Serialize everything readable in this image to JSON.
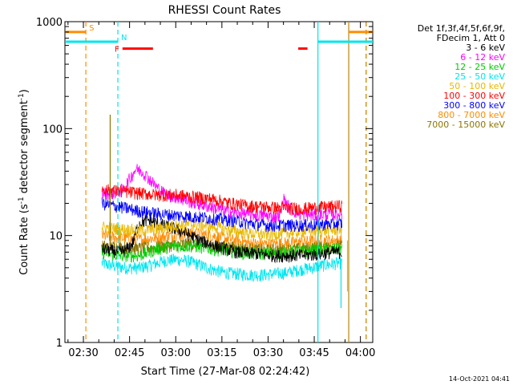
{
  "chart_data": {
    "type": "line",
    "title": "RHESSI Count Rates",
    "xlabel": "Start Time (27-Mar-08 02:24:42)",
    "ylabel_parts": [
      "Count Rate (s",
      "-1",
      " detector segment",
      "-1",
      ")"
    ],
    "footer_date": "14-Oct-2021 04:41",
    "yscale": "log",
    "ylim": [
      1,
      1000
    ],
    "xlim_minutes_from_0224": [
      0,
      100
    ],
    "x_ticks": [
      {
        "label": "02:30",
        "t": 6
      },
      {
        "label": "02:45",
        "t": 21
      },
      {
        "label": "03:00",
        "t": 36
      },
      {
        "label": "03:15",
        "t": 51
      },
      {
        "label": "03:30",
        "t": 66
      },
      {
        "label": "03:45",
        "t": 81
      },
      {
        "label": "04:00",
        "t": 96
      }
    ],
    "y_ticks": [
      {
        "label": "1",
        "v": 1
      },
      {
        "label": "10",
        "v": 10
      },
      {
        "label": "100",
        "v": 100
      },
      {
        "label": "1000",
        "v": 1000
      }
    ],
    "legend_header": [
      "Det 1f,3f,4f,5f,6f,9f,",
      "FDecim 1, Att 0"
    ],
    "legend_position": "right",
    "series": [
      {
        "name": "3 - 6 keV",
        "color": "#000000",
        "x": [
          12,
          18,
          20,
          22,
          24,
          27,
          30,
          34,
          38,
          44,
          50,
          56,
          62,
          68,
          74,
          80,
          84,
          87,
          90
        ],
        "y": [
          7.5,
          7,
          7.4,
          8.5,
          13,
          14,
          13,
          12,
          11,
          9,
          7.8,
          7,
          6.8,
          6.5,
          6.5,
          6.6,
          6.8,
          7,
          7
        ]
      },
      {
        "name": "6 - 12 keV",
        "color": "#ff00ff",
        "x": [
          12,
          16,
          19,
          21,
          23,
          25,
          27,
          30,
          33,
          36,
          40,
          46,
          52,
          58,
          64,
          68,
          70,
          71,
          73,
          76,
          80,
          85,
          90
        ],
        "y": [
          25,
          25,
          27,
          34,
          42,
          40,
          35,
          28,
          24,
          23,
          21,
          19,
          17,
          16,
          15.5,
          15,
          16,
          22,
          18,
          16,
          15.5,
          16,
          16
        ]
      },
      {
        "name": "12 - 25 keV",
        "color": "#00cc00",
        "x": [
          12,
          18,
          24,
          30,
          36,
          42,
          48,
          54,
          60,
          66,
          72,
          78,
          84,
          90
        ],
        "y": [
          7,
          6.5,
          6.5,
          7.5,
          8,
          8,
          7.5,
          7.2,
          6.8,
          6.8,
          7,
          7.2,
          7.5,
          7.5
        ]
      },
      {
        "name": "25 - 50 keV",
        "color": "#00e5ee",
        "x": [
          12,
          16,
          20,
          24,
          28,
          32,
          36,
          40,
          44,
          48,
          52,
          56,
          60,
          64,
          68,
          72,
          76,
          80,
          84,
          88,
          90
        ],
        "y": [
          5.5,
          5.2,
          5,
          5,
          5.3,
          5.8,
          6,
          5.8,
          5.3,
          4.8,
          4.5,
          4.4,
          4.3,
          4.3,
          4.4,
          4.5,
          4.8,
          5,
          5.3,
          5.5,
          5.6
        ]
      },
      {
        "name": "50 - 100 keV",
        "color": "#e8b800",
        "x": [
          12,
          18,
          24,
          30,
          36,
          42,
          48,
          54,
          60,
          66,
          72,
          78,
          84,
          90
        ],
        "y": [
          12,
          11.5,
          11.2,
          11.5,
          12.5,
          12.8,
          12.2,
          11.2,
          10.5,
          10.2,
          10.5,
          11,
          11.2,
          11.5
        ]
      },
      {
        "name": "100 - 300 keV",
        "color": "#ff0000",
        "x": [
          12,
          18,
          24,
          30,
          36,
          42,
          48,
          54,
          60,
          66,
          72,
          78,
          84,
          90
        ],
        "y": [
          27,
          26,
          25,
          24,
          24,
          23,
          22,
          20,
          19,
          18.5,
          18,
          18,
          18.5,
          19
        ]
      },
      {
        "name": "300 - 800 keV",
        "color": "#0000ff",
        "x": [
          12,
          18,
          24,
          30,
          36,
          42,
          48,
          54,
          60,
          66,
          72,
          78,
          84,
          90
        ],
        "y": [
          20,
          18.5,
          17,
          16,
          15.5,
          15,
          14.5,
          14,
          13,
          12.5,
          12.5,
          12.5,
          12.8,
          13
        ]
      },
      {
        "name": "800 - 7000 keV",
        "color": "#ff8c00",
        "x": [
          12,
          18,
          24,
          30,
          36,
          42,
          48,
          54,
          60,
          66,
          72,
          78,
          84,
          90
        ],
        "y": [
          10,
          9.5,
          9.2,
          9.5,
          10.2,
          10.5,
          10,
          9.2,
          8.5,
          8.3,
          8.5,
          8.8,
          9,
          9
        ]
      },
      {
        "name": "7000 - 15000 keV",
        "color": "#8b7500",
        "x": [
          12,
          18,
          24,
          30,
          36,
          42,
          48,
          54,
          60,
          66,
          72,
          78,
          84,
          90
        ],
        "y": [
          8,
          7.8,
          7.6,
          7.8,
          8.2,
          8.5,
          8.2,
          7.8,
          7.5,
          7.3,
          7.4,
          7.6,
          7.8,
          8
        ]
      }
    ],
    "annotations": {
      "vertical_lines": [
        {
          "t": 6.8,
          "color": "#ff8c00",
          "style": "dashed"
        },
        {
          "t": 17.2,
          "color": "#00e5ee",
          "style": "dashed"
        },
        {
          "t": 82.2,
          "color": "#00e5ee",
          "style": "solid"
        },
        {
          "t": 92.2,
          "color": "#b8860b",
          "style": "solid"
        },
        {
          "t": 97.8,
          "color": "#00e5ee",
          "style": "dashed"
        },
        {
          "t": 97.9,
          "color": "#ff8c00",
          "style": "dashed"
        }
      ],
      "flag_bars": [
        {
          "t0": 0.3,
          "t1": 6.8,
          "v": 800,
          "color": "#ff8c00",
          "label": "S"
        },
        {
          "t0": 0.3,
          "t1": 17.2,
          "v": 650,
          "color": "#00e5ee",
          "label": "N"
        },
        {
          "t0": 18.7,
          "t1": 28.6,
          "v": 560,
          "color": "#ff0000",
          "label": "F"
        },
        {
          "t0": 75.8,
          "t1": 78.8,
          "v": 560,
          "color": "#ff0000",
          "label": ""
        },
        {
          "t0": 82.2,
          "t1": 100,
          "v": 650,
          "color": "#00e5ee",
          "label": ""
        },
        {
          "t0": 92.2,
          "t1": 100,
          "v": 800,
          "color": "#ff8c00",
          "label": ""
        }
      ],
      "spikes": [
        {
          "t": 14.7,
          "v0": 8,
          "v1": 135,
          "color": "#8b7500"
        },
        {
          "t": 89.7,
          "v0": 2.1,
          "v1": 6,
          "color": "#00e5ee"
        },
        {
          "t": 91.8,
          "v0": 3.0,
          "v1": 9,
          "color": "#e8b800"
        }
      ]
    }
  }
}
